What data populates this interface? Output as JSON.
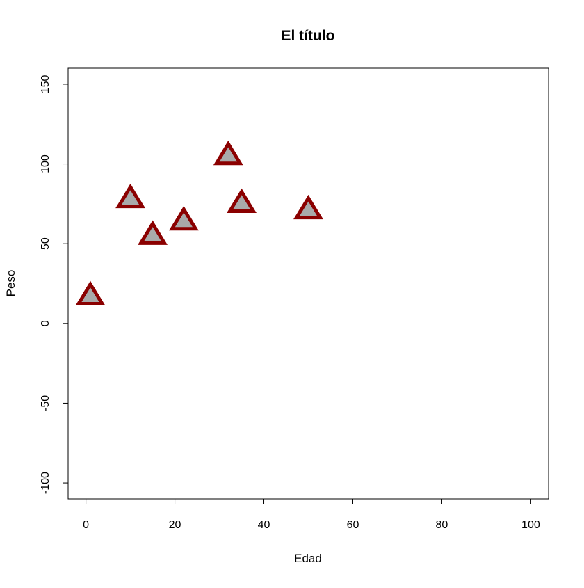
{
  "chart_data": {
    "type": "scatter",
    "title": "El título",
    "xlabel": "Edad",
    "ylabel": "Peso",
    "xlim": [
      -4,
      104
    ],
    "ylim": [
      -110,
      160
    ],
    "xticks": [
      0,
      20,
      40,
      60,
      80,
      100
    ],
    "xtick_labels": [
      "0",
      "20",
      "40",
      "60",
      "80",
      "100"
    ],
    "yticks": [
      -100,
      -50,
      0,
      50,
      100,
      150
    ],
    "ytick_labels": [
      "-100",
      "-50",
      "0",
      "50",
      "100",
      "150"
    ],
    "grid": false,
    "marker": "triangle",
    "colors": {
      "marker_fill": "#a9a9a9",
      "marker_stroke": "#8b0000"
    },
    "series": [
      {
        "points": [
          {
            "x": 1,
            "y": 17
          },
          {
            "x": 10,
            "y": 78
          },
          {
            "x": 15,
            "y": 55
          },
          {
            "x": 22,
            "y": 64
          },
          {
            "x": 32,
            "y": 105
          },
          {
            "x": 35,
            "y": 75
          },
          {
            "x": 50,
            "y": 71
          }
        ]
      }
    ]
  }
}
